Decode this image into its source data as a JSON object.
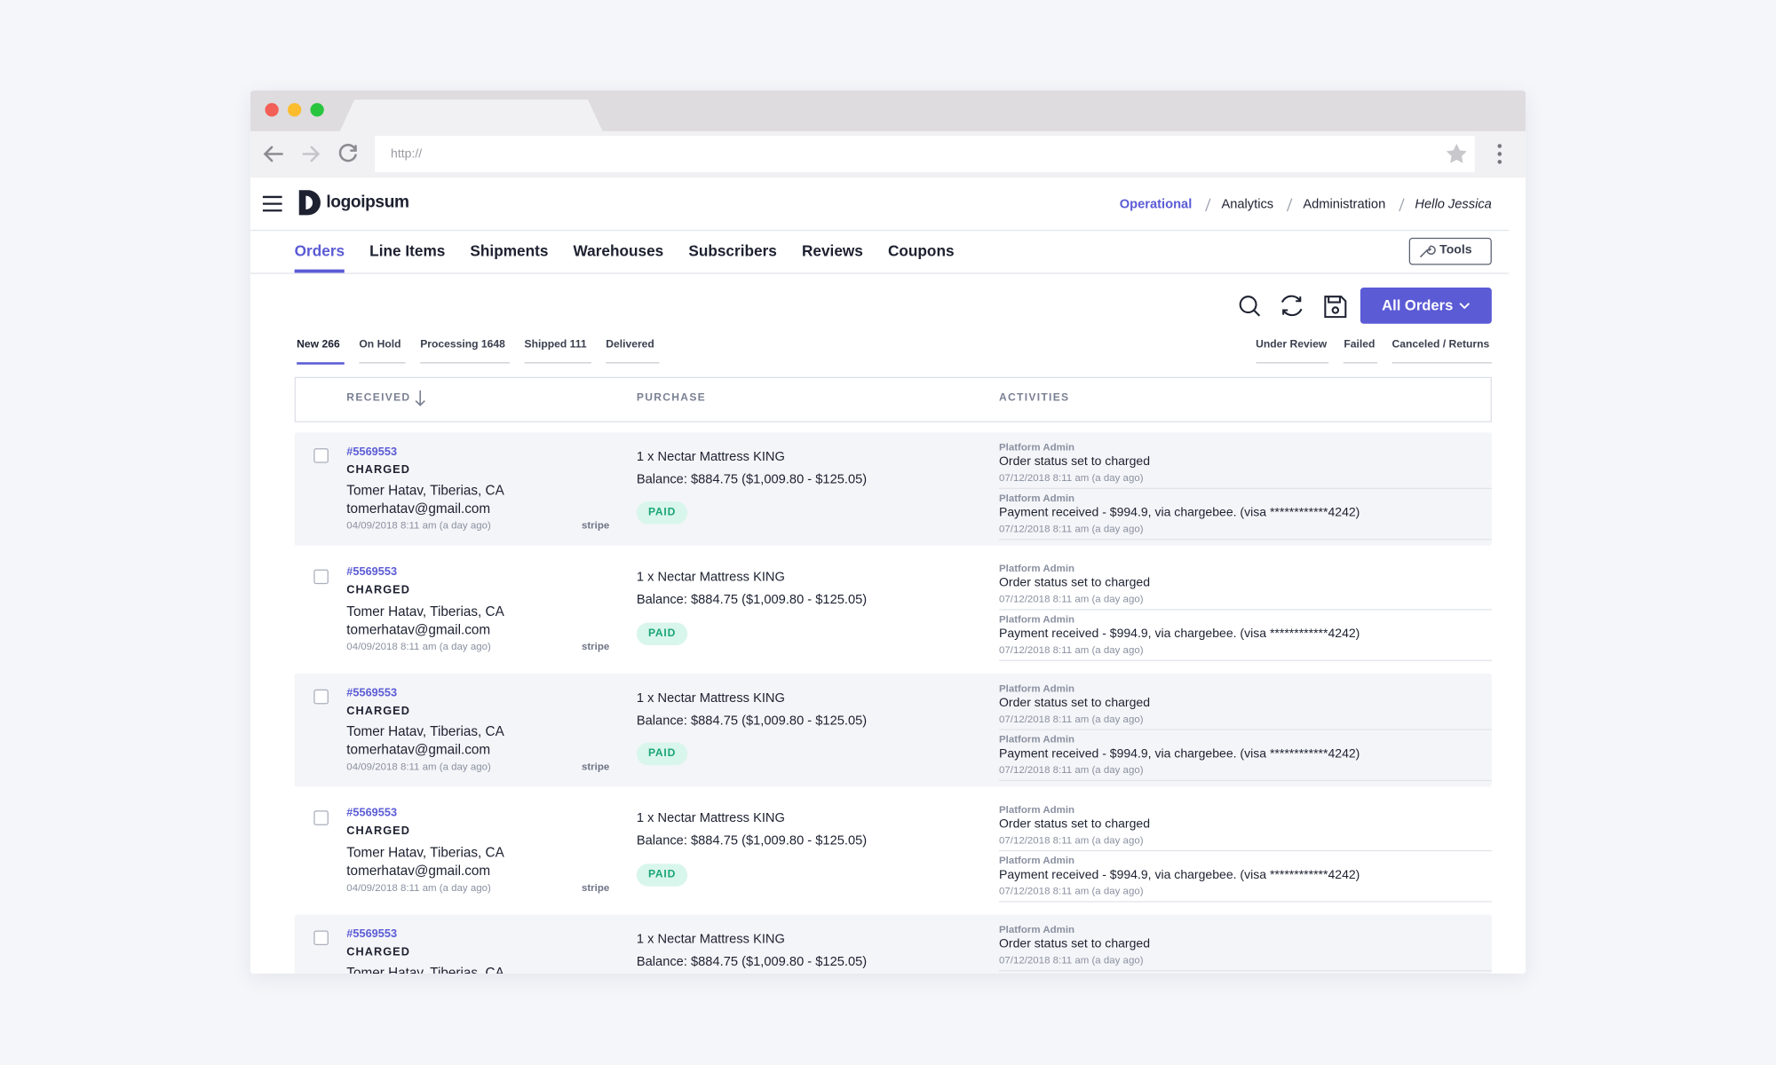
{
  "browser": {
    "url": "http://"
  },
  "header": {
    "logo": "logoipsum",
    "nav": [
      "Operational",
      "Analytics",
      "Administration"
    ],
    "greeting": "Hello Jessica"
  },
  "tabs": [
    "Orders",
    "Line Items",
    "Shipments",
    "Warehouses",
    "Subscribers",
    "Reviews",
    "Coupons"
  ],
  "tools": "Tools",
  "filter_button": "All Orders",
  "status_tabs_left": [
    "New 266",
    "On Hold",
    "Processing 1648",
    "Shipped 111",
    "Delivered"
  ],
  "status_tabs_right": [
    "Under Review",
    "Failed",
    "Canceled / Returns"
  ],
  "table": {
    "columns": [
      "RECEIVED",
      "PURCHASE",
      "ACTIVITIES"
    ],
    "rows": [
      {
        "id": "#5569553",
        "status": "CHARGED",
        "customer": "Tomer Hatav, Tiberias, CA",
        "email": "tomerhatav@gmail.com",
        "date": "04/09/2018 8:11 am (a day ago)",
        "gateway": "stripe",
        "item": "1 x Nectar Mattress KING",
        "balance": "Balance: $884.75 ($1,009.80 - $125.05)",
        "payment_status": "PAID",
        "activities": [
          {
            "actor": "Platform Admin",
            "text": "Order status set to charged",
            "time": "07/12/2018 8:11 am (a day ago)"
          },
          {
            "actor": "Platform Admin",
            "text": "Payment received - $994.9, via chargebee. (visa ************4242)",
            "time": "07/12/2018 8:11 am (a day ago)"
          }
        ]
      },
      {
        "id": "#5569553",
        "status": "CHARGED",
        "customer": "Tomer Hatav, Tiberias, CA",
        "email": "tomerhatav@gmail.com",
        "date": "04/09/2018 8:11 am (a day ago)",
        "gateway": "stripe",
        "item": "1 x Nectar Mattress KING",
        "balance": "Balance: $884.75 ($1,009.80 - $125.05)",
        "payment_status": "PAID",
        "activities": [
          {
            "actor": "Platform Admin",
            "text": "Order status set to charged",
            "time": "07/12/2018 8:11 am (a day ago)"
          },
          {
            "actor": "Platform Admin",
            "text": "Payment received - $994.9, via chargebee. (visa ************4242)",
            "time": "07/12/2018 8:11 am (a day ago)"
          }
        ]
      },
      {
        "id": "#5569553",
        "status": "CHARGED",
        "customer": "Tomer Hatav, Tiberias, CA",
        "email": "tomerhatav@gmail.com",
        "date": "04/09/2018 8:11 am (a day ago)",
        "gateway": "stripe",
        "item": "1 x Nectar Mattress KING",
        "balance": "Balance: $884.75 ($1,009.80 - $125.05)",
        "payment_status": "PAID",
        "activities": [
          {
            "actor": "Platform Admin",
            "text": "Order status set to charged",
            "time": "07/12/2018 8:11 am (a day ago)"
          },
          {
            "actor": "Platform Admin",
            "text": "Payment received - $994.9, via chargebee. (visa ************4242)",
            "time": "07/12/2018 8:11 am (a day ago)"
          }
        ]
      },
      {
        "id": "#5569553",
        "status": "CHARGED",
        "customer": "Tomer Hatav, Tiberias, CA",
        "email": "tomerhatav@gmail.com",
        "date": "04/09/2018 8:11 am (a day ago)",
        "gateway": "stripe",
        "item": "1 x Nectar Mattress KING",
        "balance": "Balance: $884.75 ($1,009.80 - $125.05)",
        "payment_status": "PAID",
        "activities": [
          {
            "actor": "Platform Admin",
            "text": "Order status set to charged",
            "time": "07/12/2018 8:11 am (a day ago)"
          },
          {
            "actor": "Platform Admin",
            "text": "Payment received - $994.9, via chargebee. (visa ************4242)",
            "time": "07/12/2018 8:11 am (a day ago)"
          }
        ]
      },
      {
        "id": "#5569553",
        "status": "CHARGED",
        "customer": "Tomer Hatav, Tiberias, CA",
        "item": "1 x Nectar Mattress KING",
        "balance": "Balance: $884.75 ($1,009.80 - $125.05)",
        "activities": [
          {
            "actor": "Platform Admin",
            "text": "Order status set to charged",
            "time": "07/12/2018 8:11 am (a day ago)"
          }
        ]
      }
    ]
  }
}
